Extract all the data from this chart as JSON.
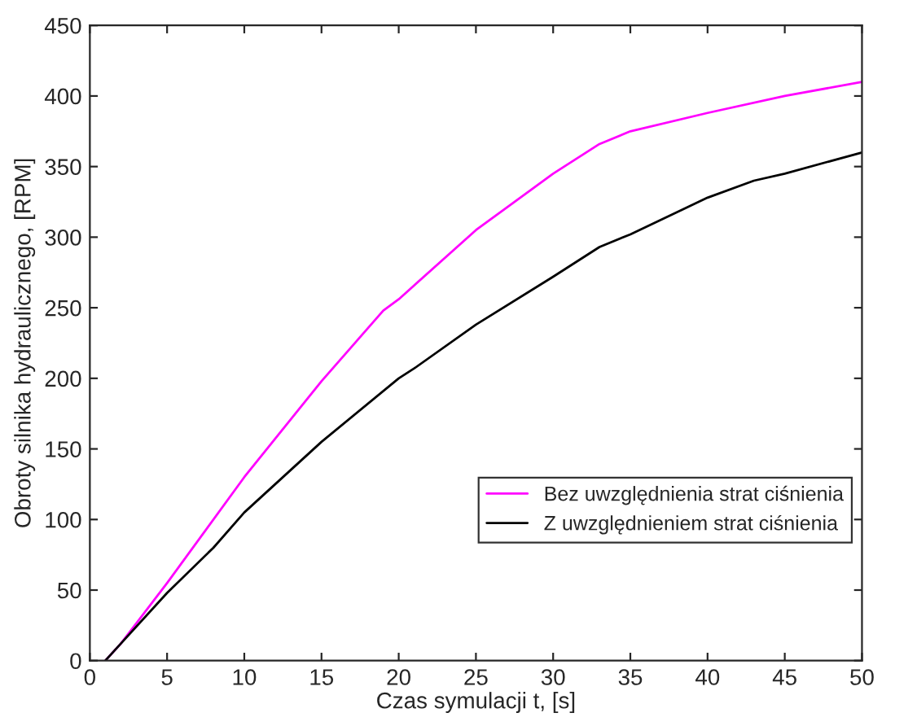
{
  "chart_data": {
    "type": "line",
    "xlabel": "Czas symulacji t, [s]",
    "ylabel": "Obroty silnika hydraulicznego, [RPM]",
    "xlim": [
      0,
      50
    ],
    "ylim": [
      0,
      450
    ],
    "xticks": [
      0,
      5,
      10,
      15,
      20,
      25,
      30,
      35,
      40,
      45,
      50
    ],
    "yticks": [
      0,
      50,
      100,
      150,
      200,
      250,
      300,
      350,
      400,
      450
    ],
    "grid": false,
    "legend": "bottom right",
    "series": [
      {
        "name": "Bez uwzględnienia strat ciśnienia",
        "color": "#ff00ff",
        "x": [
          1,
          2,
          5,
          10,
          15,
          19,
          20,
          25,
          30,
          33,
          35,
          40,
          45,
          50
        ],
        "values": [
          0,
          12,
          55,
          130,
          198,
          248,
          256,
          305,
          345,
          366,
          375,
          388,
          400,
          410
        ]
      },
      {
        "name": "Z uwzględnieniem strat ciśnienia",
        "color": "#000000",
        "x": [
          1,
          2,
          5,
          8,
          10,
          15,
          20,
          21,
          25,
          30,
          33,
          35,
          40,
          43,
          45,
          50
        ],
        "values": [
          0,
          12,
          48,
          80,
          105,
          155,
          200,
          207,
          238,
          272,
          293,
          302,
          328,
          340,
          345,
          360
        ]
      }
    ]
  }
}
